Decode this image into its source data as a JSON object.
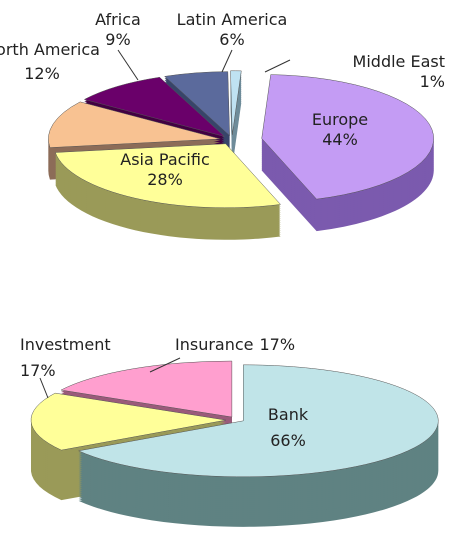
{
  "chart_data": [
    {
      "type": "pie",
      "categories": [
        "Europe",
        "Asia Pacific",
        "North America",
        "Africa",
        "Latin America",
        "Middle East"
      ],
      "values": [
        44,
        28,
        12,
        9,
        6,
        1
      ],
      "value_labels": [
        "44%",
        "28%",
        "12%",
        "9%",
        "6%",
        "1%"
      ],
      "colors": [
        "#c49cf4",
        "#ffff99",
        "#f8c292",
        "#6a006a",
        "#5b6a9c",
        "#bfe2f2"
      ],
      "side_colors": [
        "#7b5aae",
        "#9a9a58",
        "#8c6c58",
        "#420042",
        "#37456a",
        "#6f8c9a"
      ]
    },
    {
      "type": "pie",
      "categories": [
        "Bank",
        "Investment",
        "Insurance"
      ],
      "values": [
        66,
        17,
        17
      ],
      "value_labels": [
        "66%",
        "17%",
        "17%"
      ],
      "colors": [
        "#c0e4e8",
        "#ffff99",
        "#ff9fcf"
      ],
      "side_colors": [
        "#5f8282",
        "#9a9a58",
        "#9a5a7a"
      ]
    }
  ]
}
